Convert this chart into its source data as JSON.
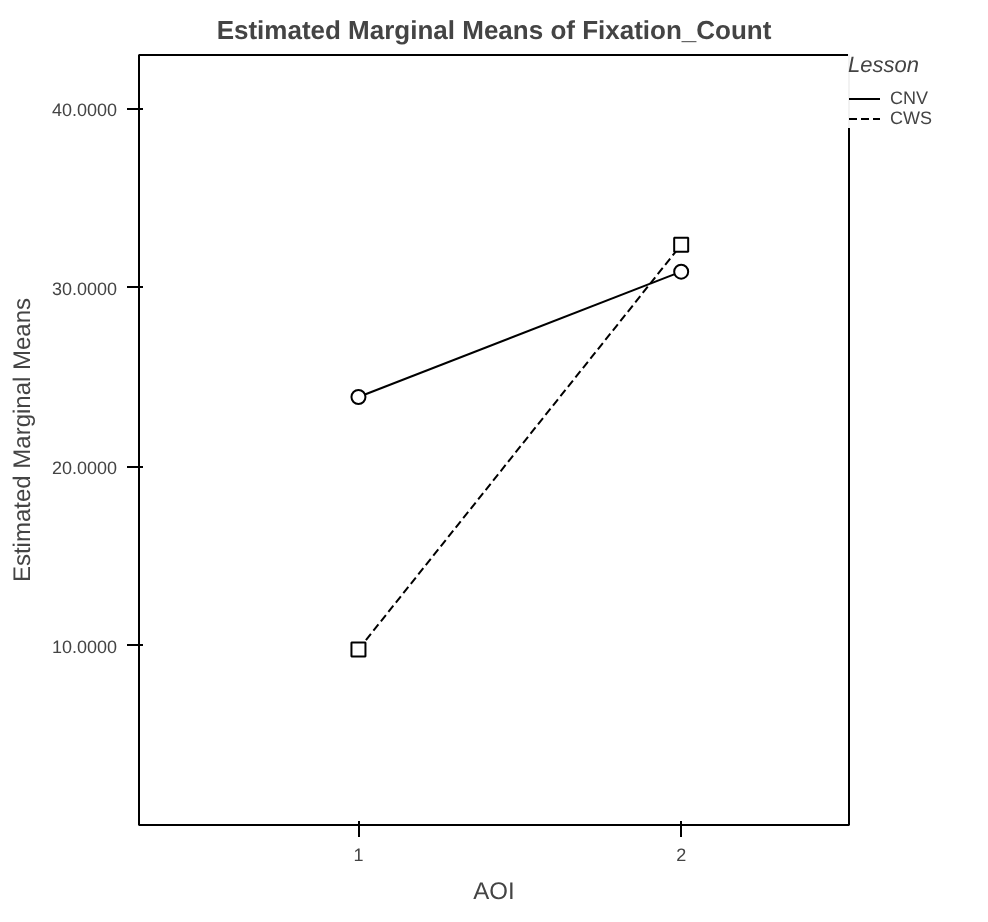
{
  "chart_data": {
    "type": "line",
    "title": "Estimated Marginal Means of Fixation_Count",
    "xlabel": "AOI",
    "ylabel": "Estimated Marginal Means",
    "legend_title": "Lesson",
    "legend": "top right",
    "grid": false,
    "x": [
      1,
      2
    ],
    "xlim": [
      0.32,
      2.52
    ],
    "xticks": [
      1,
      2
    ],
    "ylim": [
      0,
      43
    ],
    "yticks": [
      {
        "value": 10,
        "label": "10.0000"
      },
      {
        "value": 20,
        "label": "20.0000"
      },
      {
        "value": 30,
        "label": "30.0000"
      },
      {
        "value": 40,
        "label": "40.0000"
      }
    ],
    "series": [
      {
        "name": "CNV",
        "color": "#000000",
        "values": [
          23.9,
          30.9
        ],
        "marker": "circle",
        "line_style": "solid"
      },
      {
        "name": "CWS",
        "color": "#000000",
        "values": [
          9.8,
          32.4
        ],
        "marker": "square",
        "line_style": "dashed"
      }
    ]
  }
}
